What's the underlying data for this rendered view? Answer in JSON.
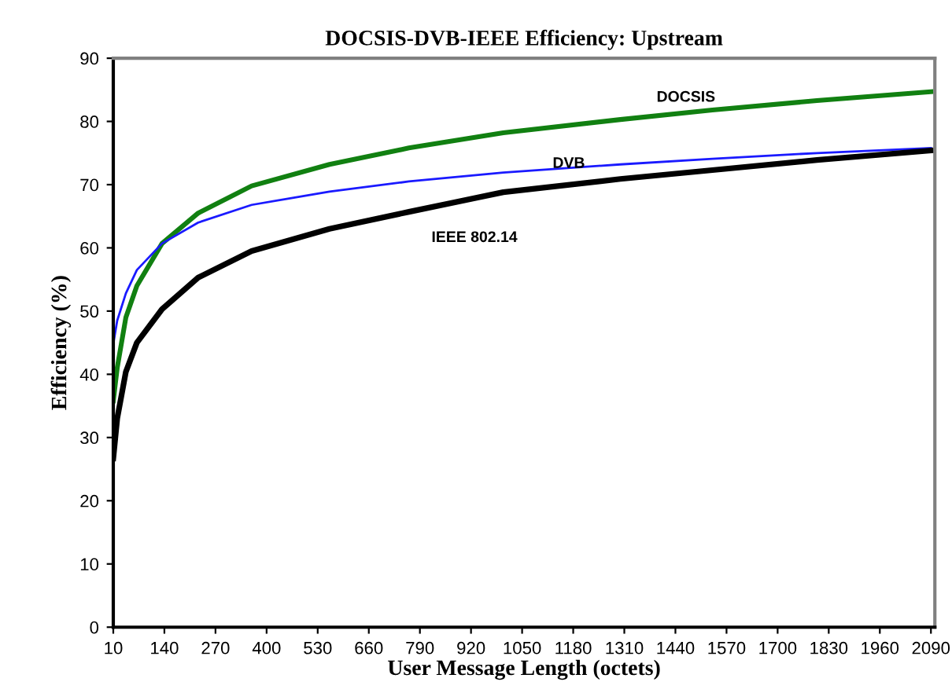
{
  "chart_data": {
    "type": "line",
    "title": "DOCSIS-DVB-IEEE Efficiency: Upstream",
    "xlabel": "User Message Length (octets)",
    "ylabel": "Efficiency (%)",
    "x": [
      10,
      20,
      42,
      70,
      134,
      226,
      362,
      560,
      762,
      1002,
      1300,
      1534,
      1800,
      2090
    ],
    "series": [
      {
        "name": "DOCSIS",
        "color": "#118011",
        "values": [
          35.8,
          41,
          49,
          54,
          60.7,
          65.5,
          69.8,
          73.2,
          75.8,
          78.2,
          80.3,
          81.8,
          83.3,
          84.7
        ]
      },
      {
        "name": "DVB",
        "color": "#1a1aff",
        "values": [
          44.8,
          48.5,
          52.8,
          56.5,
          60.7,
          64,
          66.8,
          68.9,
          70.5,
          71.9,
          73.2,
          74.1,
          75,
          75.8
        ]
      },
      {
        "name": "IEEE 802.14",
        "color": "#000000",
        "values": [
          26.7,
          33,
          40.4,
          45,
          50.3,
          55.3,
          59.5,
          63,
          65.7,
          68.8,
          70.9,
          72.3,
          73.9,
          75.4
        ]
      }
    ],
    "xlim": [
      10,
      2100
    ],
    "ylim": [
      0,
      90
    ],
    "xticks": [
      10,
      140,
      270,
      400,
      530,
      660,
      790,
      920,
      1050,
      1180,
      1310,
      1440,
      1570,
      1700,
      1830,
      1960,
      2090
    ],
    "yticks": [
      0,
      10,
      20,
      30,
      40,
      50,
      60,
      70,
      80,
      90
    ],
    "grid": false,
    "legend": false,
    "marker": "none",
    "line_style": "solid"
  }
}
